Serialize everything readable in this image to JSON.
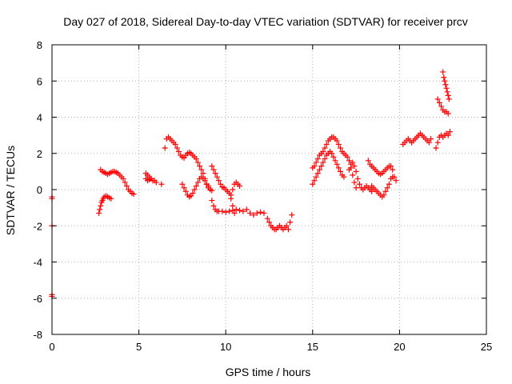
{
  "chart_data": {
    "type": "scatter",
    "title": "Day 027 of 2018, Sidereal Day-to-day VTEC variation (SDTVAR) for receiver prcv",
    "xlabel": "GPS time / hours",
    "ylabel": "SDTVAR / TECUs",
    "xlim": [
      0,
      25
    ],
    "ylim": [
      -8,
      8
    ],
    "xticks": [
      0,
      5,
      10,
      15,
      20,
      25
    ],
    "yticks": [
      -8,
      -6,
      -4,
      -2,
      0,
      2,
      4,
      6,
      8
    ],
    "xtick_labels": [
      "0",
      "5",
      "10",
      "15",
      "20",
      "25"
    ],
    "ytick_labels": [
      "-8",
      "-6",
      "-4",
      "-2",
      "0",
      "2",
      "4",
      "6",
      "8"
    ],
    "grid": true,
    "marker": "+",
    "color": "#ff0000",
    "series": [
      {
        "name": "t0",
        "x": [
          0.0,
          0.0,
          0.0,
          0.0,
          0.0
        ],
        "y": [
          -0.5,
          -0.4,
          -2.0,
          -5.8,
          -5.9
        ]
      },
      {
        "name": "a1",
        "x": [
          2.8,
          2.9,
          3.0,
          3.1,
          3.2,
          3.3,
          3.4,
          3.5,
          3.6,
          3.7,
          3.8,
          3.9,
          4.0,
          4.1,
          4.2,
          4.3,
          4.4,
          4.5,
          4.6,
          4.7
        ],
        "y": [
          1.1,
          1.0,
          0.95,
          0.9,
          0.85,
          0.9,
          0.95,
          1.0,
          1.0,
          0.95,
          0.9,
          0.8,
          0.7,
          0.6,
          0.4,
          0.2,
          0.0,
          -0.1,
          -0.2,
          -0.25
        ]
      },
      {
        "name": "a2",
        "x": [
          2.7,
          2.75,
          2.8,
          2.85,
          2.9,
          2.95,
          3.0,
          3.1,
          3.2,
          3.3,
          3.4
        ],
        "y": [
          -1.3,
          -1.1,
          -0.9,
          -0.7,
          -0.6,
          -0.5,
          -0.4,
          -0.35,
          -0.4,
          -0.45,
          -0.5
        ]
      },
      {
        "name": "b1",
        "x": [
          5.4,
          5.5,
          5.6,
          5.7,
          5.8,
          5.9,
          6.0,
          6.3
        ],
        "y": [
          0.9,
          0.8,
          0.7,
          0.6,
          0.5,
          0.5,
          0.4,
          0.3
        ]
      },
      {
        "name": "b2",
        "x": [
          5.4,
          5.5,
          5.6,
          5.7
        ],
        "y": [
          0.6,
          0.5,
          0.55,
          0.6
        ]
      },
      {
        "name": "c1",
        "x": [
          6.5,
          6.6,
          6.7,
          6.8,
          6.9,
          7.0,
          7.1,
          7.2,
          7.3,
          7.4,
          7.5,
          7.6,
          7.7,
          7.8,
          7.9,
          8.0,
          8.1,
          8.2,
          8.3,
          8.4,
          8.5,
          8.6,
          8.7,
          8.8,
          8.9,
          9.0,
          9.1,
          9.2
        ],
        "y": [
          2.3,
          2.8,
          2.9,
          2.8,
          2.7,
          2.6,
          2.5,
          2.3,
          2.1,
          1.9,
          1.8,
          1.75,
          1.9,
          2.0,
          2.05,
          2.0,
          1.9,
          1.8,
          1.7,
          1.5,
          1.3,
          1.1,
          0.9,
          0.6,
          0.3,
          0.1,
          0.0,
          -0.05
        ]
      },
      {
        "name": "c2",
        "x": [
          7.5,
          7.6,
          7.7,
          7.8,
          7.9,
          8.0,
          8.1,
          8.2,
          8.3,
          8.4,
          8.5,
          8.6,
          8.7,
          8.8,
          8.9,
          9.0
        ],
        "y": [
          0.3,
          0.1,
          -0.1,
          -0.3,
          -0.4,
          -0.35,
          -0.2,
          0.0,
          0.2,
          0.4,
          0.6,
          0.7,
          0.6,
          0.5,
          0.3,
          0.2
        ]
      },
      {
        "name": "d1",
        "x": [
          9.2,
          9.3,
          9.4,
          9.5,
          9.6,
          9.7,
          9.8,
          9.9,
          10.0,
          10.1,
          10.2,
          10.3,
          10.4,
          10.5,
          10.6,
          10.7,
          10.8
        ],
        "y": [
          1.3,
          1.1,
          0.9,
          0.7,
          0.5,
          0.3,
          0.15,
          0.1,
          0.0,
          -0.1,
          -0.2,
          -0.3,
          0.0,
          0.3,
          0.4,
          0.3,
          0.2
        ]
      },
      {
        "name": "d2",
        "x": [
          9.2,
          9.3,
          9.4,
          9.5,
          9.6,
          9.8,
          10.0,
          10.2,
          10.4,
          10.6,
          10.8,
          11.0,
          11.2,
          11.4,
          11.6,
          11.8,
          12.0,
          12.2
        ],
        "y": [
          -0.6,
          -0.9,
          -1.1,
          -1.2,
          -1.2,
          -1.2,
          -1.25,
          -1.2,
          -1.15,
          -1.1,
          -1.15,
          -1.2,
          -1.1,
          -1.3,
          -1.4,
          -1.3,
          -1.25,
          -1.3
        ]
      },
      {
        "name": "d3",
        "x": [
          10.3,
          10.4,
          10.5
        ],
        "y": [
          -0.5,
          -0.9,
          -1.3
        ]
      },
      {
        "name": "e1",
        "x": [
          12.4,
          12.5,
          12.6,
          12.7,
          12.8,
          12.9,
          13.0,
          13.1,
          13.2,
          13.3,
          13.4,
          13.5,
          13.6,
          13.7,
          13.8
        ],
        "y": [
          -1.6,
          -1.8,
          -2.0,
          -2.1,
          -2.2,
          -2.2,
          -2.1,
          -2.0,
          -2.1,
          -2.2,
          -2.1,
          -2.0,
          -2.2,
          -1.8,
          -1.4
        ]
      },
      {
        "name": "f1",
        "x": [
          15.0,
          15.1,
          15.2,
          15.3,
          15.4,
          15.5,
          15.6,
          15.7,
          15.8,
          15.9,
          16.0,
          16.1,
          16.2,
          16.3,
          16.4,
          16.5,
          16.6,
          16.7,
          16.8,
          16.9,
          17.0,
          17.1,
          17.2,
          17.3,
          17.4,
          17.5
        ],
        "y": [
          1.2,
          1.3,
          1.5,
          1.7,
          1.9,
          2.0,
          2.1,
          2.3,
          2.5,
          2.7,
          2.8,
          2.9,
          2.9,
          2.8,
          2.7,
          2.5,
          2.3,
          2.1,
          2.0,
          1.9,
          1.8,
          1.6,
          1.2,
          0.8,
          0.4,
          0.1
        ]
      },
      {
        "name": "f2",
        "x": [
          15.0,
          15.1,
          15.2,
          15.3,
          15.4,
          15.5,
          15.6,
          15.7,
          15.8,
          15.9,
          16.0,
          16.1,
          16.2,
          16.3,
          16.4,
          16.5,
          16.6,
          16.7,
          16.8
        ],
        "y": [
          0.3,
          0.5,
          0.7,
          0.9,
          1.1,
          1.3,
          1.5,
          1.7,
          1.9,
          2.0,
          2.1,
          2.0,
          1.8,
          1.6,
          1.4,
          1.2,
          1.0,
          0.8,
          0.7
        ]
      },
      {
        "name": "f3",
        "x": [
          17.1,
          17.2,
          17.3,
          17.4,
          17.5,
          17.6,
          17.7,
          17.8,
          17.9,
          18.0,
          18.1,
          18.2,
          18.3,
          18.4
        ],
        "y": [
          1.1,
          1.4,
          1.5,
          1.3,
          1.0,
          0.6,
          0.3,
          0.1,
          0.0,
          0.1,
          0.2,
          0.1,
          0.0,
          -0.1
        ]
      },
      {
        "name": "g1",
        "x": [
          18.2,
          18.3,
          18.4,
          18.5,
          18.6,
          18.7,
          18.8,
          18.9,
          19.0,
          19.1,
          19.2,
          19.3,
          19.4,
          19.5,
          19.6,
          19.7,
          19.8
        ],
        "y": [
          1.6,
          1.4,
          1.3,
          1.2,
          1.1,
          1.0,
          0.9,
          0.85,
          0.9,
          1.0,
          1.1,
          1.2,
          1.3,
          1.3,
          1.1,
          0.7,
          0.5
        ]
      },
      {
        "name": "g2",
        "x": [
          18.4,
          18.5,
          18.6,
          18.7,
          18.8,
          18.9,
          19.0,
          19.1,
          19.2,
          19.3,
          19.4,
          19.5,
          19.6
        ],
        "y": [
          0.2,
          0.1,
          0.0,
          -0.1,
          -0.2,
          -0.3,
          -0.4,
          -0.3,
          -0.1,
          0.1,
          0.3,
          0.6,
          0.7
        ]
      },
      {
        "name": "h1",
        "x": [
          20.2,
          20.3,
          20.4,
          20.5,
          20.6,
          20.7,
          20.8,
          20.9,
          21.0,
          21.1,
          21.2,
          21.3,
          21.4,
          21.5,
          21.6,
          21.7,
          21.8
        ],
        "y": [
          2.5,
          2.6,
          2.7,
          2.8,
          2.7,
          2.6,
          2.7,
          2.8,
          2.9,
          3.0,
          3.1,
          3.0,
          2.9,
          2.8,
          2.7,
          2.6,
          2.8
        ]
      },
      {
        "name": "h2",
        "x": [
          22.1,
          22.2,
          22.3,
          22.4,
          22.5,
          22.6,
          22.7,
          22.8,
          22.9
        ],
        "y": [
          2.3,
          2.6,
          2.9,
          3.0,
          2.9,
          3.0,
          3.1,
          3.0,
          3.2
        ]
      },
      {
        "name": "h3",
        "x": [
          22.2,
          22.3,
          22.4,
          22.5,
          22.6,
          22.7,
          22.8
        ],
        "y": [
          5.0,
          4.8,
          4.6,
          4.4,
          4.3,
          4.3,
          4.2
        ]
      },
      {
        "name": "h4",
        "x": [
          22.5,
          22.55,
          22.6,
          22.65,
          22.7,
          22.75,
          22.8,
          22.85
        ],
        "y": [
          6.5,
          6.2,
          6.0,
          5.8,
          5.6,
          5.4,
          5.2,
          5.0
        ]
      }
    ]
  }
}
